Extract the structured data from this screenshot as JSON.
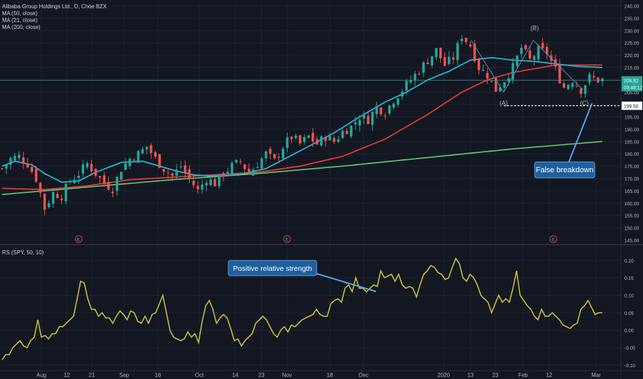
{
  "legend": {
    "title": "Alibaba Group Holdings Ltd., D, Choe BZX",
    "ma_lines": [
      "MA (50, close)",
      "MA (21, close)",
      "MA (200, close)"
    ],
    "rs_line": "RS (SPY, 50, 10)"
  },
  "colors": {
    "background": "#131722",
    "grid": "#1f2330",
    "up": "#26a69a",
    "down": "#ef5350",
    "ma21": "#29b6d8",
    "ma50": "#e53935",
    "ma200": "#5fbf6e",
    "rs": "#c9c13c",
    "price_line": "#26a69a",
    "callout": "#1f5f9e",
    "callout_border": "#5aa3e6"
  },
  "annotations": {
    "wave_a": "(A)",
    "wave_b": "(B)",
    "wave_c": "(C)",
    "false_breakdown": "False breakdown",
    "positive_rs": "Positive relative strength",
    "support_price": "199.50",
    "last_price": "209.82",
    "countdown": "03:48:12",
    "earnings_marker": "E"
  },
  "chart_data": [
    {
      "type": "candlestick",
      "title": "Alibaba Group Holdings Ltd., D, Choe BZX",
      "ylim": [
        144,
        241
      ],
      "y_ticks": [
        "240.00",
        "235.00",
        "230.00",
        "225.00",
        "220.00",
        "215.00",
        "210.00",
        "205.00",
        "200.00",
        "195.00",
        "190.00",
        "185.00",
        "180.00",
        "175.00",
        "170.00",
        "165.00",
        "160.00",
        "155.00",
        "150.00",
        "145.00"
      ],
      "x_ticks": [
        "Aug",
        "12",
        "21",
        "Sep",
        "16",
        "Oct",
        "14",
        "23",
        "Nov",
        "18",
        "Dec",
        "2020",
        "13",
        "23",
        "Feb",
        "12",
        "Mar"
      ],
      "series": [
        {
          "name": "MA (21, close)",
          "anchors": [
            [
              0,
              175.0
            ],
            [
              3,
              177.0
            ],
            [
              7,
              175.5
            ],
            [
              10,
              172.0
            ],
            [
              14,
              168.5
            ],
            [
              18,
              169.0
            ],
            [
              22,
              172.5
            ],
            [
              28,
              176.5
            ],
            [
              33,
              177.0
            ],
            [
              37,
              175.0
            ],
            [
              41,
              173.0
            ],
            [
              45,
              171.5
            ],
            [
              49,
              171.0
            ],
            [
              53,
              171.2
            ],
            [
              57,
              172.0
            ],
            [
              62,
              174.0
            ],
            [
              67,
              178.5
            ],
            [
              72,
              183.0
            ],
            [
              78,
              188.5
            ],
            [
              84,
              195.0
            ],
            [
              90,
              201.0
            ],
            [
              95,
              205.0
            ],
            [
              100,
              210.0
            ],
            [
              105,
              213.5
            ],
            [
              110,
              218.0
            ],
            [
              115,
              219.0
            ],
            [
              120,
              218.0
            ],
            [
              125,
              217.5
            ],
            [
              130,
              216.5
            ],
            [
              135,
              215.5
            ],
            [
              141,
              215.0
            ]
          ]
        },
        {
          "name": "MA (50, close)",
          "anchors": [
            [
              0,
              166.0
            ],
            [
              10,
              165.5
            ],
            [
              20,
              167.0
            ],
            [
              30,
              169.5
            ],
            [
              40,
              170.5
            ],
            [
              50,
              171.5
            ],
            [
              60,
              172.5
            ],
            [
              70,
              175.0
            ],
            [
              80,
              179.0
            ],
            [
              90,
              186.0
            ],
            [
              100,
              196.0
            ],
            [
              108,
              205.0
            ],
            [
              114,
              210.0
            ],
            [
              120,
              213.0
            ],
            [
              125,
              214.5
            ],
            [
              130,
              216.0
            ],
            [
              141,
              216.0
            ]
          ]
        },
        {
          "name": "MA (200, close)",
          "anchors": [
            [
              0,
              163.5
            ],
            [
              20,
              166.5
            ],
            [
              40,
              169.5
            ],
            [
              60,
              172.0
            ],
            [
              80,
              175.0
            ],
            [
              100,
              178.5
            ],
            [
              120,
              182.0
            ],
            [
              141,
              185.0
            ]
          ]
        },
        {
          "name": "Price",
          "anchors": [
            [
              0,
              174
            ],
            [
              2,
              178
            ],
            [
              4,
              179
            ],
            [
              6,
              176
            ],
            [
              8,
              170
            ],
            [
              10,
              158
            ],
            [
              12,
              164
            ],
            [
              14,
              163
            ],
            [
              16,
              169
            ],
            [
              18,
              172
            ],
            [
              20,
              176
            ],
            [
              22,
              172
            ],
            [
              24,
              168
            ],
            [
              26,
              166
            ],
            [
              28,
              174
            ],
            [
              30,
              178
            ],
            [
              32,
              180
            ],
            [
              34,
              183
            ],
            [
              36,
              178
            ],
            [
              38,
              174
            ],
            [
              40,
              171
            ],
            [
              42,
              175
            ],
            [
              44,
              170
            ],
            [
              46,
              165
            ],
            [
              48,
              170
            ],
            [
              50,
              168
            ],
            [
              52,
              172
            ],
            [
              54,
              175
            ],
            [
              56,
              177
            ],
            [
              58,
              172
            ],
            [
              60,
              176
            ],
            [
              62,
              180
            ],
            [
              64,
              177
            ],
            [
              66,
              183
            ],
            [
              68,
              187
            ],
            [
              70,
              184
            ],
            [
              72,
              187
            ],
            [
              74,
              184
            ],
            [
              76,
              187
            ],
            [
              78,
              185
            ],
            [
              80,
              189
            ],
            [
              82,
              191
            ],
            [
              84,
              195
            ],
            [
              86,
              194
            ],
            [
              88,
              199
            ],
            [
              90,
              197
            ],
            [
              92,
              202
            ],
            [
              94,
              206
            ],
            [
              96,
              210
            ],
            [
              98,
              214
            ],
            [
              100,
              218
            ],
            [
              102,
              222
            ],
            [
              104,
              216
            ],
            [
              106,
              219
            ],
            [
              108,
              228
            ],
            [
              110,
              224
            ],
            [
              112,
              215
            ],
            [
              114,
              212
            ],
            [
              116,
              206
            ],
            [
              118,
              210
            ],
            [
              120,
              215
            ],
            [
              122,
              223
            ],
            [
              124,
              218
            ],
            [
              126,
              222
            ],
            [
              128,
              221
            ],
            [
              130,
              214
            ],
            [
              132,
              207
            ],
            [
              134,
              210
            ],
            [
              136,
              206
            ],
            [
              138,
              211
            ],
            [
              140,
              210
            ]
          ]
        }
      ]
    },
    {
      "type": "line",
      "title": "RS (SPY, 50, 10)",
      "ylim": [
        -0.11,
        0.235
      ],
      "y_ticks": [
        "0.20",
        "0.15",
        "0.10",
        "0.05",
        "0.00",
        "-0.05",
        "-0.10"
      ],
      "series": [
        {
          "name": "RS (SPY, 50, 10)",
          "values": [
            -0.085,
            -0.07,
            -0.07,
            -0.05,
            -0.04,
            -0.03,
            -0.045,
            -0.05,
            -0.03,
            -0.02,
            0.03,
            -0.02,
            -0.015,
            -0.025,
            -0.01,
            -0.01,
            0.01,
            0.01,
            0.02,
            0.03,
            0.04,
            0.09,
            0.14,
            0.135,
            0.09,
            0.06,
            0.06,
            0.04,
            0.05,
            0.035,
            0.035,
            0.02,
            0.04,
            0.055,
            0.045,
            0.03,
            0.055,
            0.05,
            0.025,
            0.02,
            0.04,
            0.02,
            0.045,
            0.05,
            0.075,
            0.1,
            0.05,
            0.0,
            -0.02,
            -0.025,
            -0.03,
            -0.025,
            -0.005,
            -0.02,
            -0.01,
            -0.035,
            0.025,
            0.07,
            0.085,
            0.06,
            0.02,
            0.035,
            0.045,
            0.035,
            0.005,
            -0.03,
            -0.025,
            -0.045,
            -0.03,
            -0.02,
            -0.01,
            0.02,
            0.03,
            0.04,
            0.03,
            0.01,
            -0.01,
            -0.02,
            0.0,
            0.01,
            -0.005,
            0.015,
            0.01,
            0.02,
            0.03,
            0.035,
            0.04,
            0.045,
            0.06,
            0.045,
            0.04,
            0.04,
            0.075,
            0.085,
            0.09,
            0.08,
            0.12,
            0.13,
            0.11,
            0.15,
            0.12,
            0.12,
            0.11,
            0.12,
            0.13,
            0.125,
            0.17,
            0.15,
            0.155,
            0.16,
            0.14,
            0.16,
            0.13,
            0.12,
            0.125,
            0.12,
            0.095,
            0.13,
            0.16,
            0.17,
            0.185,
            0.18,
            0.165,
            0.16,
            0.145,
            0.15,
            0.18,
            0.205,
            0.19,
            0.15,
            0.14,
            0.16,
            0.15,
            0.13,
            0.1,
            0.09,
            0.08,
            0.05,
            0.075,
            0.1,
            0.08,
            0.09,
            0.08,
            0.12,
            0.17,
            0.1,
            0.085,
            0.07,
            0.06,
            0.04,
            0.03,
            0.06,
            0.04,
            0.04,
            0.05,
            0.04,
            0.03,
            0.015,
            0.01,
            0.005,
            0.015,
            0.02,
            0.06,
            0.07,
            0.085,
            0.065,
            0.045,
            0.05,
            0.05
          ]
        }
      ]
    }
  ]
}
